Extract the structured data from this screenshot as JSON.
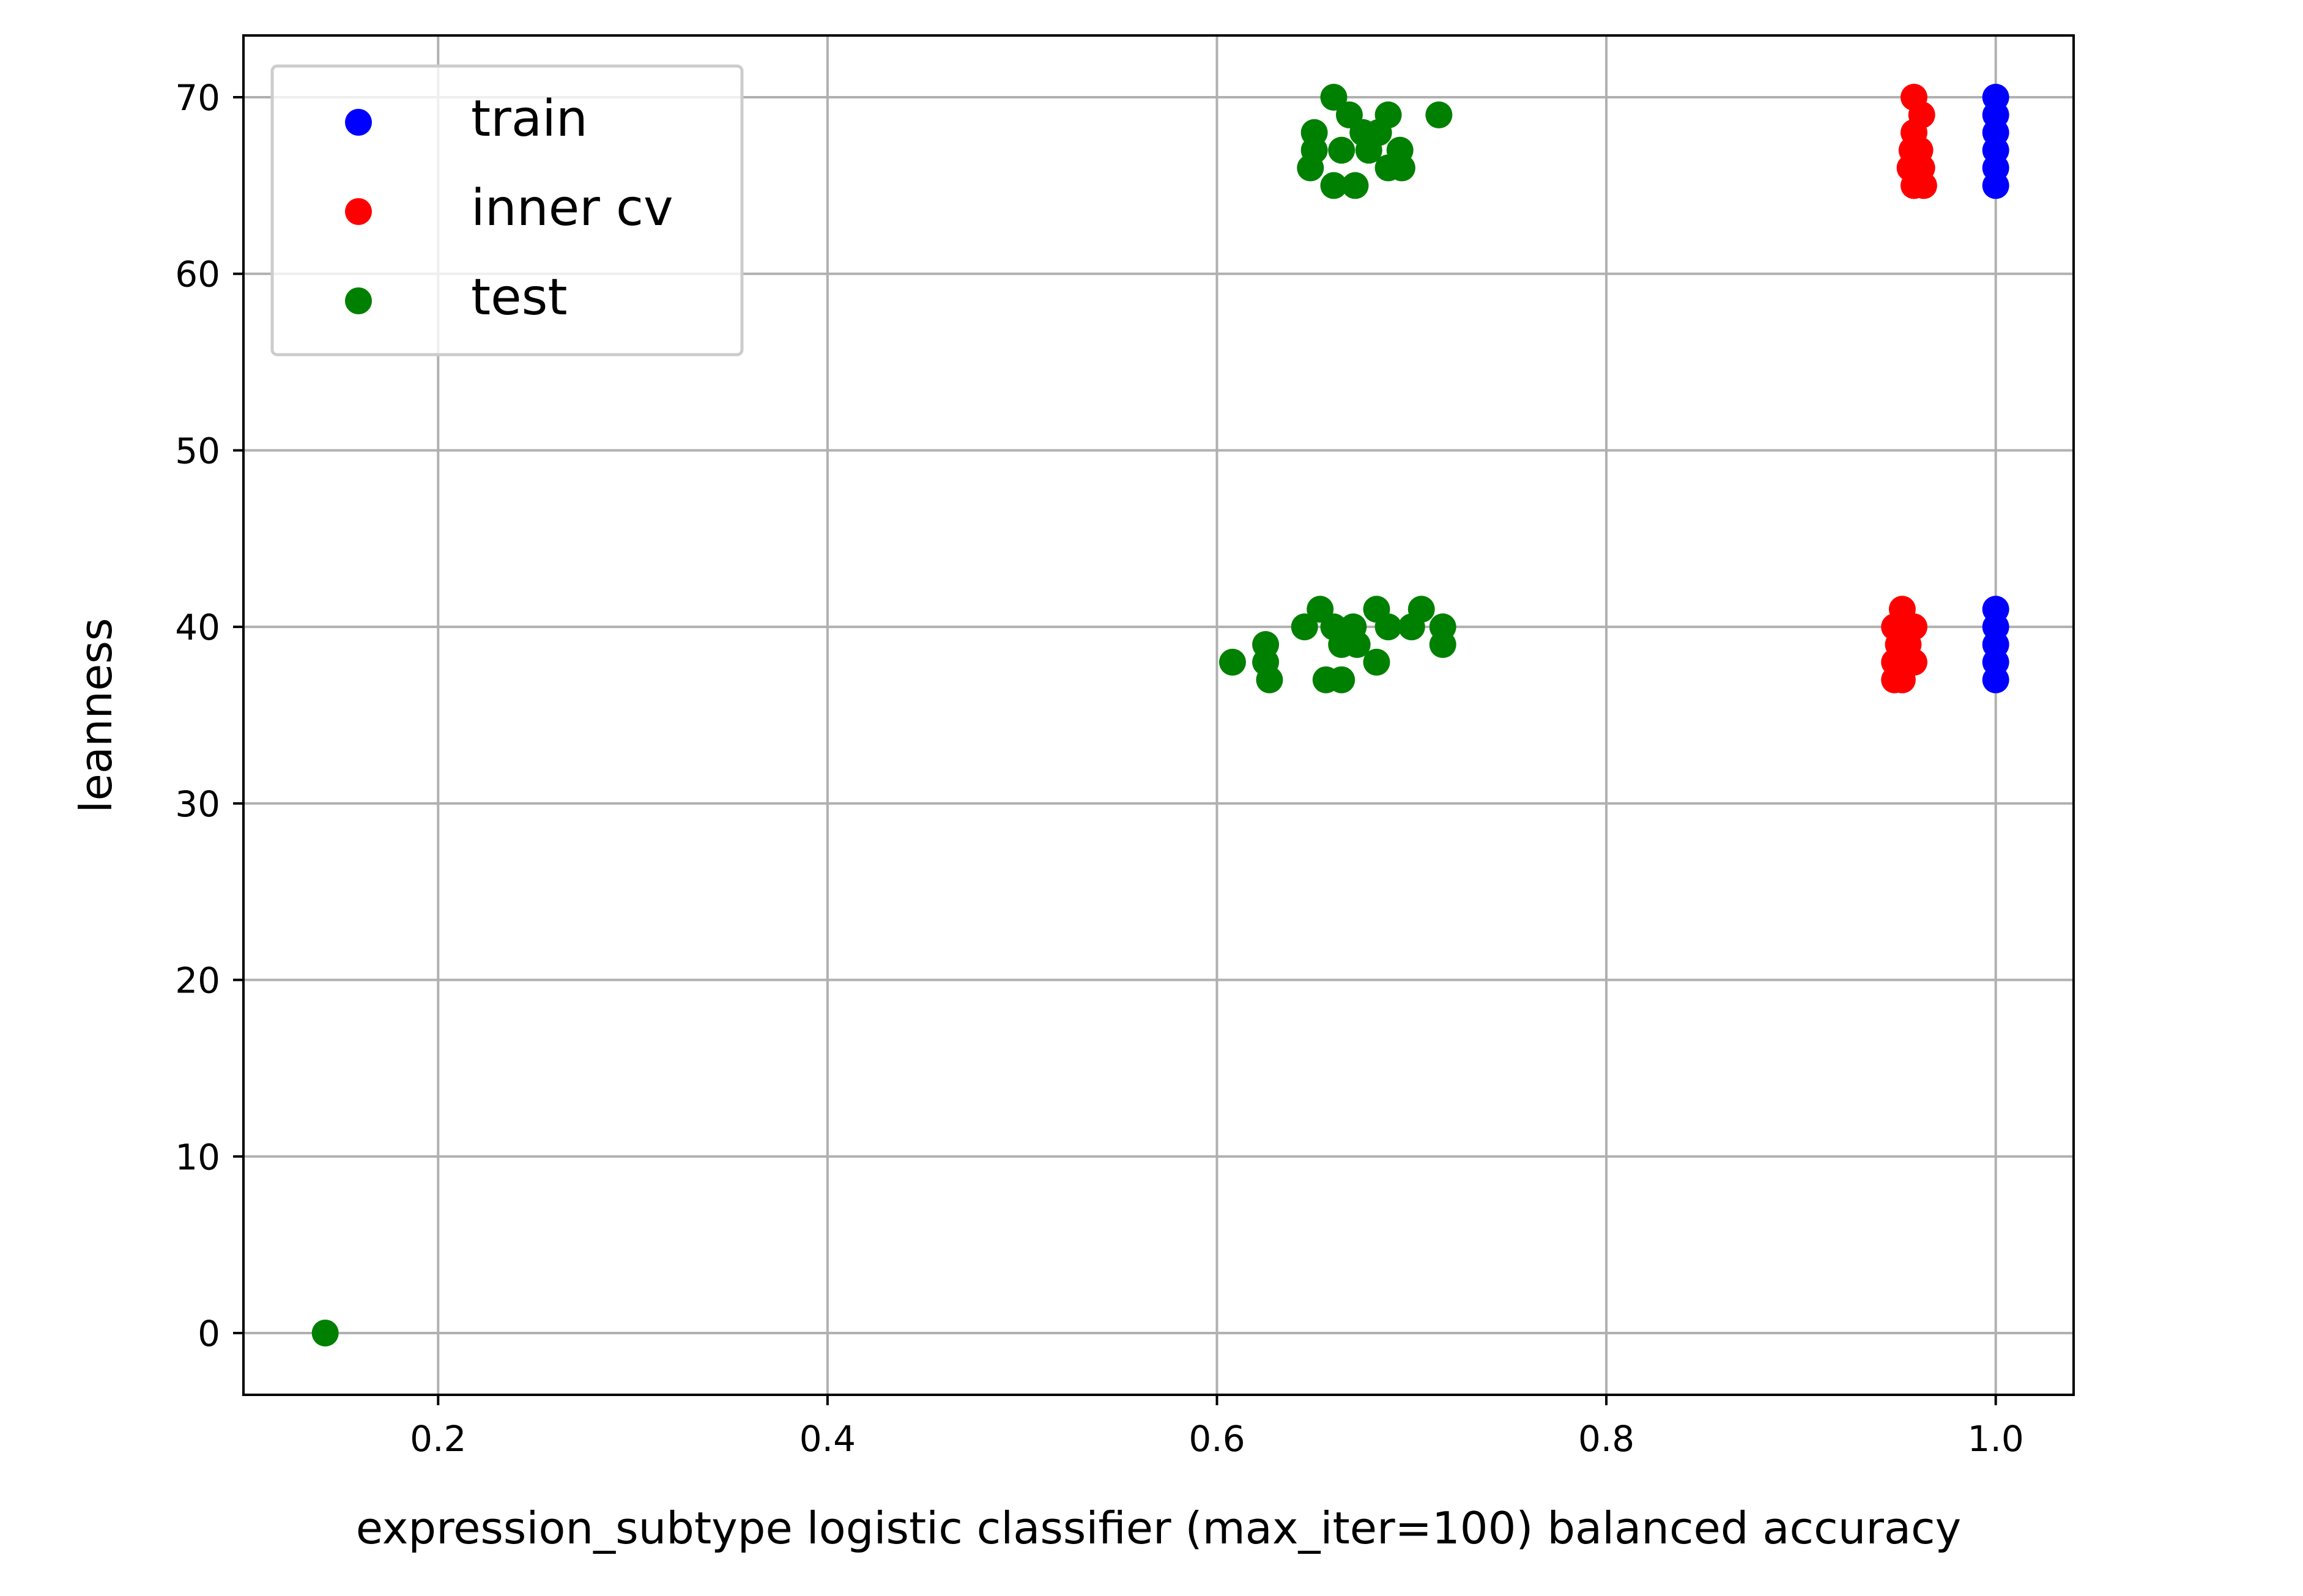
{
  "chart_data": {
    "type": "scatter",
    "title": "",
    "xlabel": "expression_subtype logistic classifier (max_iter=100) balanced accuracy",
    "ylabel": "leanness",
    "xlim": [
      0.1,
      1.04
    ],
    "ylim": [
      -3.5,
      73.5
    ],
    "xticks": [
      0.2,
      0.4,
      0.6,
      0.8,
      1.0
    ],
    "xtick_labels": [
      "0.2",
      "0.4",
      "0.6",
      "0.8",
      "1.0"
    ],
    "yticks": [
      0,
      10,
      20,
      30,
      40,
      50,
      60,
      70
    ],
    "ytick_labels": [
      "0",
      "10",
      "20",
      "30",
      "40",
      "50",
      "60",
      "70"
    ],
    "grid": true,
    "legend_position": "top-left",
    "series": [
      {
        "name": "train",
        "color": "#0000ff",
        "points": [
          [
            1.0,
            65
          ],
          [
            1.0,
            66
          ],
          [
            1.0,
            67
          ],
          [
            1.0,
            68
          ],
          [
            1.0,
            69
          ],
          [
            1.0,
            70
          ],
          [
            1.0,
            37
          ],
          [
            1.0,
            38
          ],
          [
            1.0,
            39
          ],
          [
            1.0,
            40
          ],
          [
            1.0,
            41
          ]
        ]
      },
      {
        "name": "inner cv",
        "color": "#ff0000",
        "points": [
          [
            0.958,
            70
          ],
          [
            0.962,
            69
          ],
          [
            0.958,
            68
          ],
          [
            0.957,
            67
          ],
          [
            0.961,
            67
          ],
          [
            0.956,
            66
          ],
          [
            0.962,
            66
          ],
          [
            0.958,
            65
          ],
          [
            0.963,
            65
          ],
          [
            0.952,
            41
          ],
          [
            0.948,
            40
          ],
          [
            0.955,
            40
          ],
          [
            0.958,
            40
          ],
          [
            0.95,
            39
          ],
          [
            0.955,
            39
          ],
          [
            0.948,
            38
          ],
          [
            0.958,
            38
          ],
          [
            0.948,
            37
          ],
          [
            0.952,
            37
          ]
        ]
      },
      {
        "name": "test",
        "color": "#008000",
        "points": [
          [
            0.66,
            70
          ],
          [
            0.668,
            69
          ],
          [
            0.688,
            69
          ],
          [
            0.714,
            69
          ],
          [
            0.65,
            68
          ],
          [
            0.675,
            68
          ],
          [
            0.683,
            68
          ],
          [
            0.65,
            67
          ],
          [
            0.664,
            67
          ],
          [
            0.678,
            67
          ],
          [
            0.694,
            67
          ],
          [
            0.648,
            66
          ],
          [
            0.688,
            66
          ],
          [
            0.695,
            66
          ],
          [
            0.66,
            65
          ],
          [
            0.671,
            65
          ],
          [
            0.653,
            41
          ],
          [
            0.682,
            41
          ],
          [
            0.705,
            41
          ],
          [
            0.645,
            40
          ],
          [
            0.66,
            40
          ],
          [
            0.67,
            40
          ],
          [
            0.688,
            40
          ],
          [
            0.7,
            40
          ],
          [
            0.716,
            40
          ],
          [
            0.625,
            39
          ],
          [
            0.664,
            39
          ],
          [
            0.672,
            39
          ],
          [
            0.716,
            39
          ],
          [
            0.608,
            38
          ],
          [
            0.625,
            38
          ],
          [
            0.682,
            38
          ],
          [
            0.627,
            37
          ],
          [
            0.656,
            37
          ],
          [
            0.664,
            37
          ],
          [
            0.142,
            0
          ]
        ]
      }
    ]
  }
}
